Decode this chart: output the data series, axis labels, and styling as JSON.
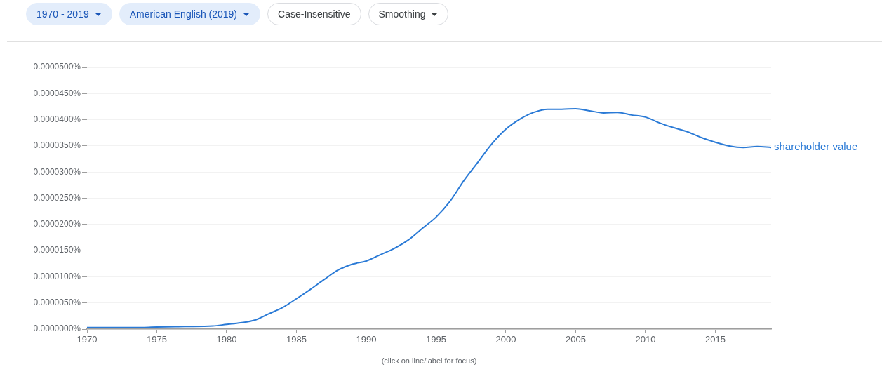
{
  "chart_data": {
    "type": "line",
    "annotations": [
      "1970 - 2019",
      "American English (2019)",
      "Case-Insensitive",
      "Smoothing",
      "(click on line/label for focus)"
    ],
    "x": [
      1970,
      1972,
      1974,
      1975,
      1977,
      1979,
      1980,
      1981,
      1982,
      1983,
      1984,
      1985,
      1986,
      1987,
      1988,
      1989,
      1990,
      1991,
      1992,
      1993,
      1994,
      1995,
      1996,
      1997,
      1998,
      1999,
      2000,
      2001,
      2002,
      2003,
      2004,
      2005,
      2006,
      2007,
      2008,
      2009,
      2010,
      2011,
      2012,
      2013,
      2014,
      2015,
      2016,
      2017,
      2018,
      2019
    ],
    "series": [
      {
        "name": "shareholder value",
        "color": "#2a7ad6",
        "values": [
          3e-07,
          3e-07,
          3e-07,
          4e-07,
          5e-07,
          6e-07,
          9e-07,
          1.2e-06,
          1.7e-06,
          2.9e-06,
          4.1e-06,
          5.8e-06,
          7.6e-06,
          9.5e-06,
          1.13e-05,
          1.24e-05,
          1.3e-05,
          1.42e-05,
          1.54e-05,
          1.7e-05,
          1.92e-05,
          2.14e-05,
          2.44e-05,
          2.84e-05,
          3.19e-05,
          3.54e-05,
          3.82e-05,
          4.01e-05,
          4.14e-05,
          4.2e-05,
          4.2e-05,
          4.21e-05,
          4.17e-05,
          4.13e-05,
          4.14e-05,
          4.09e-05,
          4.05e-05,
          3.94e-05,
          3.85e-05,
          3.77e-05,
          3.66e-05,
          3.57e-05,
          3.5e-05,
          3.47e-05,
          3.49e-05,
          3.47e-05
        ]
      }
    ],
    "xlim": [
      1970,
      2019
    ],
    "xticks": [
      1970,
      1975,
      1980,
      1985,
      1990,
      1995,
      2000,
      2005,
      2010,
      2015
    ],
    "ylim": [
      0,
      5e-05
    ],
    "yticks": [
      {
        "value": 0,
        "label": "0.0000000%"
      },
      {
        "value": 5e-06,
        "label": "0.0000050%"
      },
      {
        "value": 1e-05,
        "label": "0.0000100%"
      },
      {
        "value": 1.5e-05,
        "label": "0.0000150%"
      },
      {
        "value": 2e-05,
        "label": "0.0000200%"
      },
      {
        "value": 2.5e-05,
        "label": "0.0000250%"
      },
      {
        "value": 3e-05,
        "label": "0.0000300%"
      },
      {
        "value": 3.5e-05,
        "label": "0.0000350%"
      },
      {
        "value": 4e-05,
        "label": "0.0000400%"
      },
      {
        "value": 4.5e-05,
        "label": "0.0000450%"
      },
      {
        "value": 5e-05,
        "label": "0.0000500%"
      }
    ],
    "grid": "y",
    "line_style": "solid",
    "marker": "none"
  }
}
